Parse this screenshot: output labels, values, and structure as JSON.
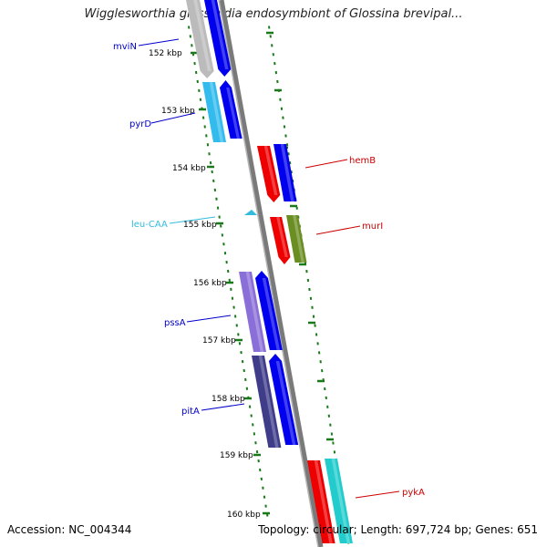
{
  "title": "Wigglesworthia glossinidia endosymbiont of Glossina brevipal...",
  "footer": {
    "accession": "Accession: NC_004344",
    "summary": "Topology: circular; Length: 697,724 bp; Genes: 651"
  },
  "colors": {
    "backbone": "#7a7a7a",
    "tick": "#1a7a1a",
    "blue_gene": "#0000ee",
    "red_gene": "#ee0000",
    "light_blue_gene": "#33bbee",
    "cyan_gene": "#22cccc",
    "green_gene": "#6b8e23",
    "purple_gene": "#8a6fd8",
    "dark_purple_gene": "#3f3d8a",
    "grey_gene": "#bbbbbb",
    "trna": "#33bbdd"
  },
  "scale_labels": [
    "152 kbp",
    "153 kbp",
    "154 kbp",
    "155 kbp",
    "156 kbp",
    "157 kbp",
    "158 kbp",
    "159 kbp",
    "160 kbp"
  ],
  "gene_labels": [
    {
      "name": "mviN",
      "color": "#0000cc"
    },
    {
      "name": "pyrD",
      "color": "#0000cc"
    },
    {
      "name": "hemB",
      "color": "#cc0000"
    },
    {
      "name": "leu-CAA",
      "color": "#33bbdd"
    },
    {
      "name": "murI",
      "color": "#cc0000"
    },
    {
      "name": "pssA",
      "color": "#0000cc"
    },
    {
      "name": "pitA",
      "color": "#0000cc"
    },
    {
      "name": "pykA",
      "color": "#cc0000"
    }
  ]
}
